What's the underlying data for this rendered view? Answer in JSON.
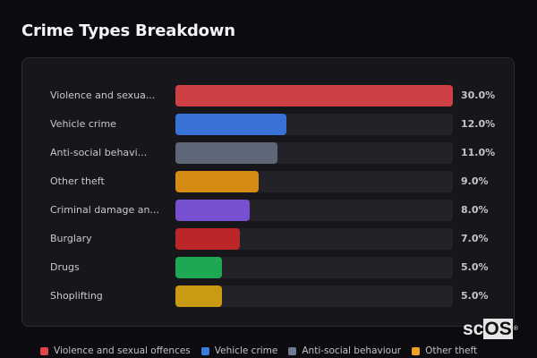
{
  "title": "Crime Types Breakdown",
  "chart_data": {
    "type": "bar",
    "orientation": "horizontal",
    "title": "Crime Types Breakdown",
    "xlabel": "",
    "ylabel": "",
    "xlim": [
      0,
      30
    ],
    "grid": false,
    "legend_position": "bottom",
    "categories": [
      "Violence and sexual offences",
      "Vehicle crime",
      "Anti-social behaviour",
      "Other theft",
      "Criminal damage and arson",
      "Burglary",
      "Drugs",
      "Shoplifting"
    ],
    "display_labels": [
      "Violence and sexua...",
      "Vehicle crime",
      "Anti-social behavi...",
      "Other theft",
      "Criminal damage an...",
      "Burglary",
      "Drugs",
      "Shoplifting"
    ],
    "values": [
      30.0,
      12.0,
      11.0,
      9.0,
      8.0,
      7.0,
      5.0,
      5.0
    ],
    "value_labels": [
      "30.0%",
      "12.0%",
      "11.0%",
      "9.0%",
      "8.0%",
      "7.0%",
      "5.0%",
      "5.0%"
    ],
    "colors": [
      "#cf4044",
      "#3872d6",
      "#5d6777",
      "#d48c14",
      "#7650d0",
      "#bc2628",
      "#1fa854",
      "#c99a12"
    ]
  },
  "rows": [
    {
      "label": "Violence and sexua...",
      "value": "30.0%",
      "pct": 30.0,
      "color": "#cf4044"
    },
    {
      "label": "Vehicle crime",
      "value": "12.0%",
      "pct": 12.0,
      "color": "#3872d6"
    },
    {
      "label": "Anti-social behavi...",
      "value": "11.0%",
      "pct": 11.0,
      "color": "#5d6777"
    },
    {
      "label": "Other theft",
      "value": "9.0%",
      "pct": 9.0,
      "color": "#d48c14"
    },
    {
      "label": "Criminal damage an...",
      "value": "8.0%",
      "pct": 8.0,
      "color": "#7650d0"
    },
    {
      "label": "Burglary",
      "value": "7.0%",
      "pct": 7.0,
      "color": "#bc2628"
    },
    {
      "label": "Drugs",
      "value": "5.0%",
      "pct": 5.0,
      "color": "#1fa854"
    },
    {
      "label": "Shoplifting",
      "value": "5.0%",
      "pct": 5.0,
      "color": "#c99a12"
    }
  ],
  "legend": [
    {
      "label": "Violence and sexual offences",
      "color": "#e0444a"
    },
    {
      "label": "Vehicle crime",
      "color": "#3a7be0"
    },
    {
      "label": "Anti-social behaviour",
      "color": "#6c7a92"
    },
    {
      "label": "Other theft",
      "color": "#f0a020"
    }
  ],
  "watermark": {
    "sc": "sc",
    "os": "OS",
    "reg": "®"
  }
}
